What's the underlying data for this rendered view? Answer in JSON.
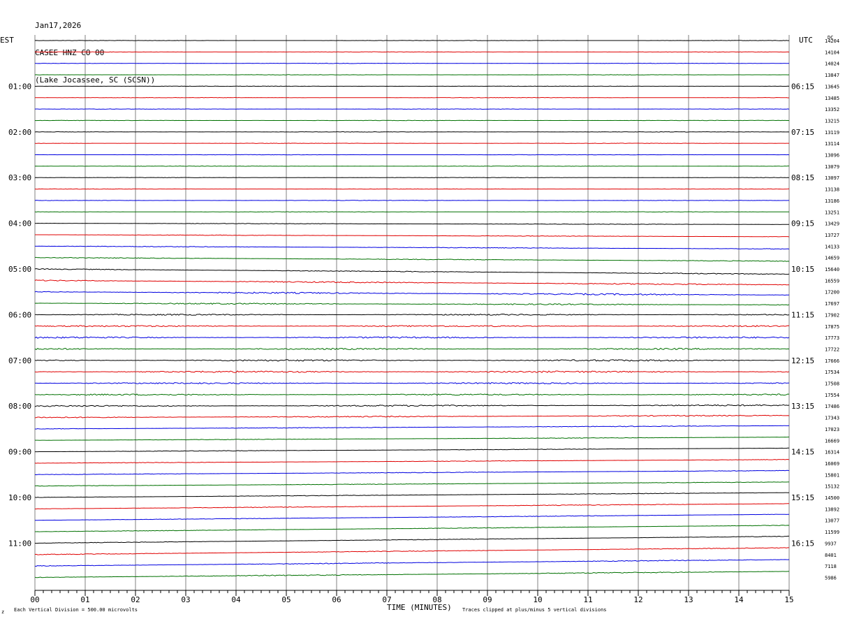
{
  "header": {
    "date": "Jan17,2026",
    "station": "CASEE HNZ CO 00",
    "location": "(Lake Jocassee, SC (SCSN))"
  },
  "labels": {
    "left_tz": "EST",
    "right_tz": "UTC",
    "dc_header": "DC",
    "x_axis_title": "TIME (MINUTES)",
    "scale_note": "Each Vertical Division =  500.00 microvolts",
    "clip_note": "Traces clipped at plus/minus 5 vertical divisions",
    "corner_mark": "z"
  },
  "colors": {
    "cycle": [
      "#000000",
      "#e00000",
      "#0000e0",
      "#007000"
    ],
    "grid": "#808080"
  },
  "chart_data": {
    "type": "line",
    "title": "CASEE HNZ CO 00",
    "xlabel": "TIME (MINUTES)",
    "xlim": [
      0,
      15
    ],
    "x_ticks": [
      "00",
      "01",
      "02",
      "03",
      "04",
      "05",
      "06",
      "07",
      "08",
      "09",
      "10",
      "11",
      "12",
      "13",
      "14",
      "15"
    ],
    "left_time_labels": [
      "01:00",
      "02:00",
      "03:00",
      "04:00",
      "05:00",
      "06:00",
      "07:00",
      "08:00",
      "09:00",
      "10:00",
      "11:00"
    ],
    "right_time_labels": [
      "06:15",
      "07:15",
      "08:15",
      "09:15",
      "10:15",
      "11:15",
      "12:15",
      "13:15",
      "14:15",
      "15:15",
      "16:15"
    ],
    "trace_count": 48,
    "dc_offsets": [
      "14204",
      "14104",
      "14024",
      "13847",
      "13645",
      "13485",
      "13352",
      "13215",
      "13119",
      "13114",
      "13096",
      "13079",
      "13097",
      "13138",
      "13186",
      "13251",
      "13429",
      "13727",
      "14133",
      "14659",
      "15640",
      "16559",
      "17200",
      "17697",
      "17902",
      "17875",
      "17773",
      "17722",
      "17666",
      "17534",
      "17508",
      "17554",
      "17486",
      "17343",
      "17023",
      "16669",
      "16314",
      "16069",
      "15801",
      "15132",
      "14500",
      "13892",
      "13077",
      "11599",
      "9937",
      "8401",
      "7118",
      "5986"
    ],
    "trace_drift": [
      0,
      0,
      0,
      0,
      0,
      0,
      0,
      0,
      0,
      0,
      0,
      0,
      0,
      0,
      0,
      0,
      -0.3,
      -0.5,
      -0.7,
      -0.9,
      -1.3,
      -1.1,
      -0.8,
      -0.4,
      0,
      0,
      0,
      0,
      0,
      0,
      0,
      0,
      0.2,
      0.5,
      0.8,
      0.8,
      0.9,
      0.9,
      1.0,
      1.0,
      1.2,
      1.3,
      1.5,
      1.6,
      1.7,
      1.7,
      1.6,
      1.5
    ],
    "trace_noise": [
      0.3,
      0.3,
      0.3,
      0.3,
      0.3,
      0.3,
      0.3,
      0.3,
      0.3,
      0.3,
      0.3,
      0.3,
      0.3,
      0.3,
      0.3,
      0.3,
      0.4,
      0.4,
      0.5,
      0.5,
      0.6,
      0.9,
      1.1,
      0.9,
      0.9,
      1.0,
      1.1,
      1.1,
      1.2,
      1.2,
      1.0,
      1.0,
      1.0,
      0.8,
      0.5,
      0.4,
      0.4,
      0.4,
      0.4,
      0.4,
      0.4,
      0.5,
      0.4,
      0.4,
      0.4,
      0.5,
      0.6,
      0.7
    ],
    "clip_divisions": 5,
    "division_microvolts": 500.0
  }
}
